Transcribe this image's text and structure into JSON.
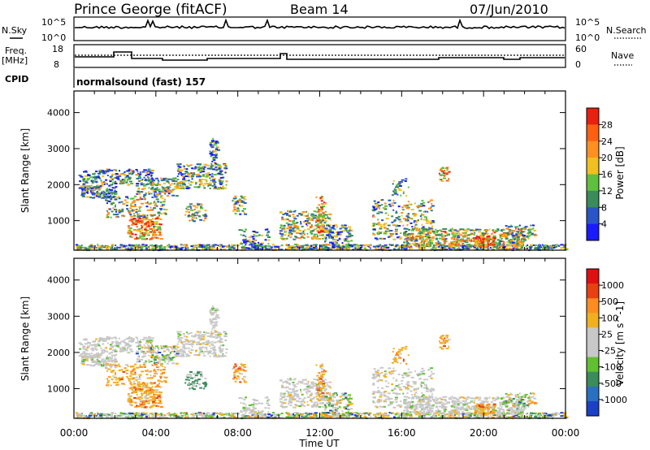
{
  "header": {
    "station": "Prince George (fitACF)",
    "beam": "Beam 14",
    "date": "07/Jun/2010"
  },
  "small_panels": {
    "nsky_label": "N.Sky",
    "nsky_ticks": [
      "10^5",
      "10^0"
    ],
    "nsearch_label": "N.Search",
    "nsearch_ticks": [
      "10^5",
      "10^0"
    ],
    "freq_label": "Freq.",
    "freq_unit": "[MHz]",
    "freq_ticks": [
      "18",
      "8"
    ],
    "nave_label": "Nave",
    "nave_ticks": [
      "60",
      "0"
    ],
    "cpid_label": "CPID",
    "cpid_text": "normalsound (fast) 157"
  },
  "colors": {
    "power_scale": [
      "#1a1aff",
      "#2a55c8",
      "#3a8c5a",
      "#5fbf3f",
      "#f0c020",
      "#ff9020",
      "#ff6010",
      "#e82010"
    ],
    "velocity_scale": [
      "#1a40c8",
      "#2a70c0",
      "#3a8c5a",
      "#60c030",
      "#c8c8c8",
      "#c8c8c8",
      "#f0b020",
      "#ff8c20",
      "#e84010",
      "#e01010"
    ]
  },
  "chart_data": [
    {
      "type": "heatmap",
      "panel": "power",
      "ylabel": "Slant Range [km]",
      "xlabel": "Time UT",
      "ylim": [
        180,
        4600
      ],
      "xlim": [
        0,
        24
      ],
      "yticks": [
        "1000",
        "2000",
        "3000",
        "4000"
      ],
      "xticks": [
        "00:00",
        "04:00",
        "08:00",
        "12:00",
        "16:00",
        "20:00",
        "00:00"
      ],
      "colorbar": {
        "label": "Power [dB]",
        "ticks": [
          "28",
          "24",
          "20",
          "16",
          "12",
          "8",
          "4"
        ],
        "range": [
          0,
          30
        ]
      }
    },
    {
      "type": "heatmap",
      "panel": "velocity",
      "ylabel": "Slant Range [km]",
      "xlabel": "Time UT",
      "ylim": [
        180,
        4600
      ],
      "xlim": [
        0,
        24
      ],
      "yticks": [
        "1000",
        "2000",
        "3000",
        "4000"
      ],
      "xticks": [
        "00:00",
        "04:00",
        "08:00",
        "12:00",
        "16:00",
        "20:00",
        "00:00"
      ],
      "colorbar": {
        "label": "Velocity [m s^-1]",
        "ticks": [
          "1000",
          "500",
          "100",
          "25",
          "-25",
          "-100",
          "-500",
          "-1000"
        ]
      }
    }
  ]
}
